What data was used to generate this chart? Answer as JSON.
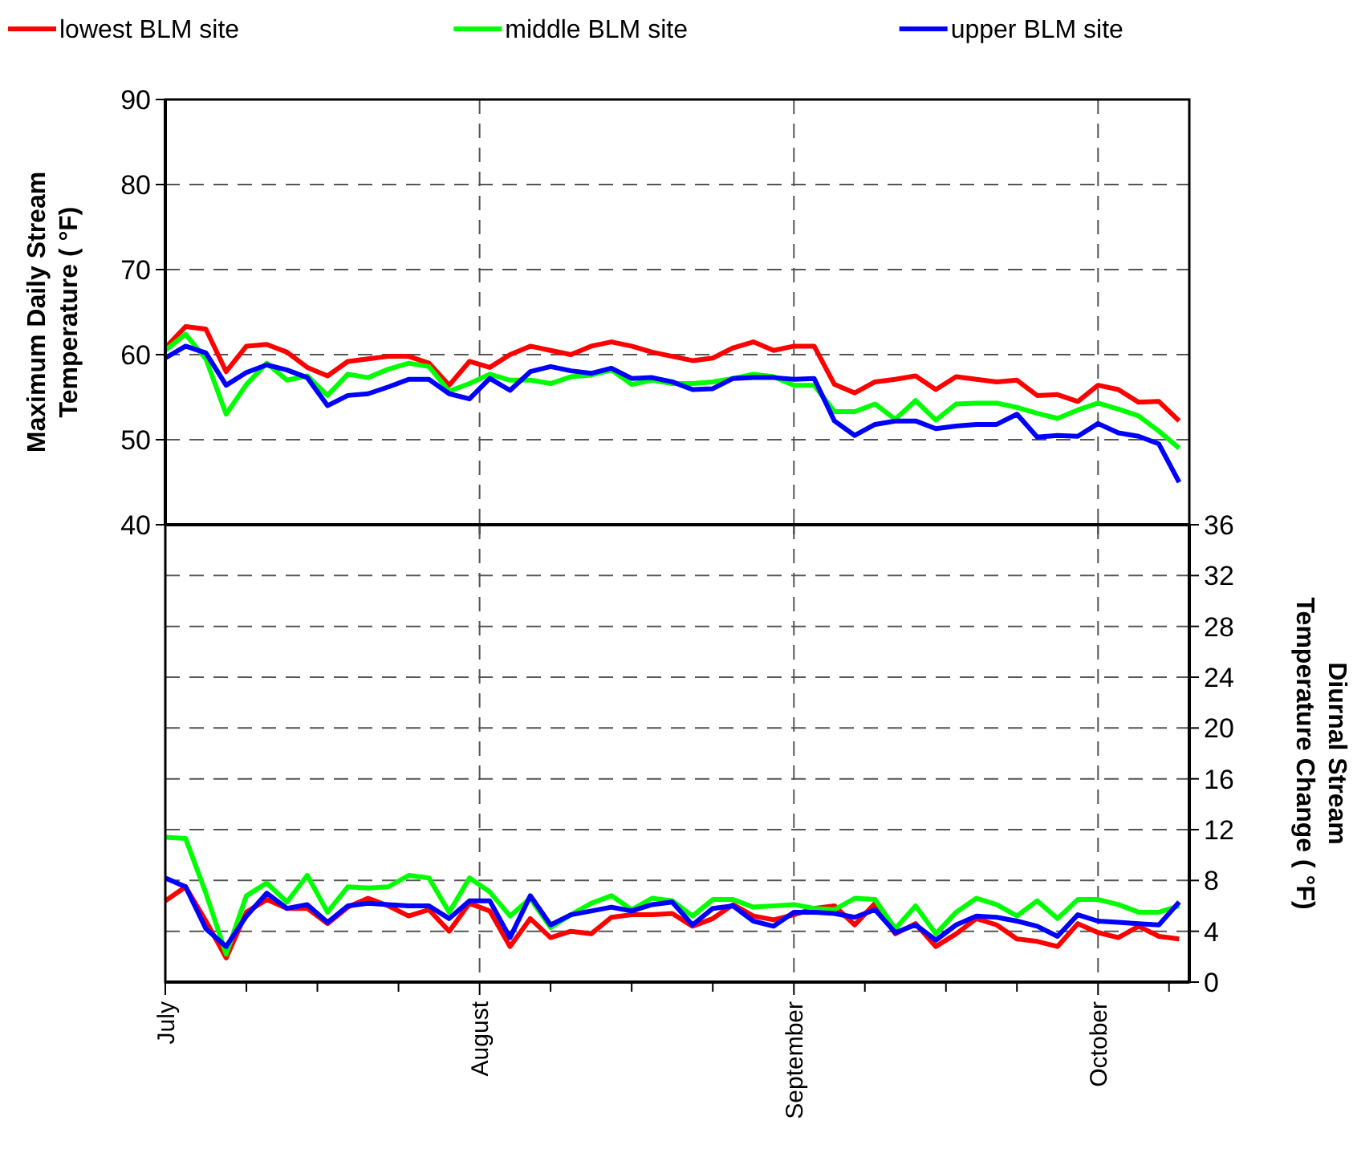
{
  "chart_data": [
    {
      "type": "line",
      "ylabel": "Maximum Daily Stream Temperature ( °F)",
      "legend": "top",
      "grid": true,
      "tick_labels": "y",
      "line_style": "solid",
      "marker": "none",
      "x": [
        "--07-01",
        "--07-03",
        "--07-05",
        "--07-07",
        "--07-09",
        "--07-11",
        "--07-13",
        "--07-15",
        "--07-17",
        "--07-19",
        "--07-21",
        "--07-23",
        "--07-25",
        "--07-27",
        "--07-29",
        "--07-31",
        "--08-02",
        "--08-04",
        "--08-06",
        "--08-08",
        "--08-10",
        "--08-12",
        "--08-14",
        "--08-16",
        "--08-18",
        "--08-20",
        "--08-22",
        "--08-24",
        "--08-26",
        "--08-28",
        "--08-30",
        "--09-01",
        "--09-03",
        "--09-05",
        "--09-07",
        "--09-09",
        "--09-11",
        "--09-13",
        "--09-15",
        "--09-17",
        "--09-19",
        "--09-21",
        "--09-23",
        "--09-25",
        "--09-27",
        "--09-29",
        "--10-01",
        "--10-03",
        "--10-05",
        "--10-07",
        "--10-09"
      ],
      "xlim": [
        "--07-01",
        "--10-10"
      ],
      "xticks": [
        {
          "value": "--07-01",
          "label": null
        },
        {
          "value": "--08-01",
          "label": null
        },
        {
          "value": "--09-01",
          "label": null
        },
        {
          "value": "--10-01",
          "label": null
        }
      ],
      "ylim": [
        40,
        90
      ],
      "yticks": [
        40,
        50,
        60,
        70,
        80,
        90
      ],
      "series": [
        {
          "name": "lowest BLM site",
          "color": "#ff0000",
          "values": [
            60.8,
            63.3,
            63,
            58,
            61,
            61.2,
            60.3,
            58.5,
            57.5,
            59.2,
            59.5,
            59.8,
            59.8,
            59,
            56.4,
            59.2,
            58.5,
            60,
            61,
            60.5,
            60,
            61,
            61.5,
            61,
            60.3,
            59.8,
            59.3,
            59.6,
            60.8,
            61.5,
            60.5,
            61,
            61,
            56.5,
            55.5,
            56.8,
            57.1,
            57.5,
            55.9,
            57.4,
            57.1,
            56.8,
            57,
            55.2,
            55.3,
            54.5,
            56.4,
            55.9,
            54.4,
            54.5,
            52.2
          ]
        },
        {
          "name": "middle BLM site",
          "color": "#00ff00",
          "values": [
            60.5,
            62.4,
            59.5,
            53,
            56.5,
            59,
            57,
            57.5,
            55.2,
            57.7,
            57.3,
            58.3,
            59,
            58.6,
            55.7,
            56.6,
            57.7,
            57,
            57,
            56.6,
            57.4,
            57.6,
            58.2,
            56.5,
            57,
            56.6,
            56.6,
            56.8,
            57.2,
            57.7,
            57.4,
            56.4,
            56.4,
            53.3,
            53.3,
            54.2,
            52.4,
            54.6,
            52.3,
            54.2,
            54.3,
            54.3,
            53.8,
            53.1,
            52.5,
            53.5,
            54.3,
            53.6,
            52.8,
            51,
            49
          ]
        },
        {
          "name": "upper BLM site",
          "color": "#0000ff",
          "values": [
            59.6,
            61,
            60.2,
            56.4,
            57.9,
            58.8,
            58.2,
            57.3,
            54,
            55.2,
            55.4,
            56.2,
            57.1,
            57.1,
            55.4,
            54.8,
            57.2,
            55.8,
            58,
            58.6,
            58.1,
            57.8,
            58.4,
            57.2,
            57.3,
            56.8,
            55.9,
            56,
            57.2,
            57.3,
            57.3,
            57.1,
            57.2,
            52.2,
            50.5,
            51.8,
            52.2,
            52.2,
            51.3,
            51.6,
            51.8,
            51.8,
            53,
            50.3,
            50.5,
            50.4,
            51.9,
            50.8,
            50.4,
            49.5,
            45
          ]
        }
      ]
    },
    {
      "type": "line",
      "y2label": "Diurnal Stream Temperature Change ( °F)",
      "grid": true,
      "line_style": "solid",
      "marker": "none",
      "x": [
        "--07-01",
        "--07-03",
        "--07-05",
        "--07-07",
        "--07-09",
        "--07-11",
        "--07-13",
        "--07-15",
        "--07-17",
        "--07-19",
        "--07-21",
        "--07-23",
        "--07-25",
        "--07-27",
        "--07-29",
        "--07-31",
        "--08-02",
        "--08-04",
        "--08-06",
        "--08-08",
        "--08-10",
        "--08-12",
        "--08-14",
        "--08-16",
        "--08-18",
        "--08-20",
        "--08-22",
        "--08-24",
        "--08-26",
        "--08-28",
        "--08-30",
        "--09-01",
        "--09-03",
        "--09-05",
        "--09-07",
        "--09-09",
        "--09-11",
        "--09-13",
        "--09-15",
        "--09-17",
        "--09-19",
        "--09-21",
        "--09-23",
        "--09-25",
        "--09-27",
        "--09-29",
        "--10-01",
        "--10-03",
        "--10-05",
        "--10-07",
        "--10-09"
      ],
      "xlim": [
        "--07-01",
        "--10-10"
      ],
      "xticks": [
        {
          "value": "--07-01",
          "label": "July"
        },
        {
          "value": "--07-09",
          "label": null
        },
        {
          "value": "--07-16",
          "label": null
        },
        {
          "value": "--07-24",
          "label": null
        },
        {
          "value": "--08-01",
          "label": "August"
        },
        {
          "value": "--08-08",
          "label": null
        },
        {
          "value": "--08-16",
          "label": null
        },
        {
          "value": "--08-24",
          "label": null
        },
        {
          "value": "--09-01",
          "label": "September"
        },
        {
          "value": "--09-08",
          "label": null
        },
        {
          "value": "--09-16",
          "label": null
        },
        {
          "value": "--09-23",
          "label": null
        },
        {
          "value": "--10-01",
          "label": "October"
        },
        {
          "value": "--10-08",
          "label": null
        }
      ],
      "y2lim": [
        0,
        36
      ],
      "y2ticks": [
        0,
        4,
        8,
        12,
        16,
        20,
        24,
        28,
        32,
        36
      ],
      "series": [
        {
          "color": "#ff0000",
          "axis": "y2",
          "values": [
            6.4,
            7.5,
            4.8,
            1.9,
            5.5,
            6.5,
            5.8,
            5.8,
            4.6,
            5.9,
            6.6,
            6,
            5.2,
            5.7,
            4,
            6.2,
            5.6,
            2.8,
            5,
            3.5,
            4,
            3.8,
            5.1,
            5.3,
            5.3,
            5.4,
            4.4,
            5,
            6.1,
            5.2,
            4.9,
            5.3,
            5.8,
            6,
            4.5,
            6.2,
            3.8,
            4.6,
            2.8,
            3.8,
            5,
            4.5,
            3.4,
            3.2,
            2.8,
            4.6,
            3.9,
            3.5,
            4.4,
            3.6,
            3.4
          ]
        },
        {
          "color": "#00ff00",
          "axis": "y2",
          "values": [
            11.4,
            11.3,
            7,
            2.2,
            6.8,
            7.8,
            6.3,
            8.4,
            5.5,
            7.5,
            7.4,
            7.5,
            8.4,
            8.2,
            5.5,
            8.2,
            7.1,
            5.2,
            6.6,
            4.3,
            5.3,
            6.2,
            6.8,
            5.7,
            6.6,
            6.4,
            5.2,
            6.5,
            6.5,
            5.9,
            6,
            6.1,
            5.8,
            5.7,
            6.6,
            6.5,
            4.2,
            6,
            3.8,
            5.5,
            6.6,
            6.1,
            5.2,
            6.4,
            5,
            6.5,
            6.5,
            6.1,
            5.5,
            5.5,
            6
          ]
        },
        {
          "color": "#0000ff",
          "axis": "y2",
          "values": [
            8.2,
            7.5,
            4.2,
            2.8,
            5.2,
            7,
            5.8,
            6.1,
            4.7,
            6,
            6.2,
            6.1,
            6,
            6,
            5,
            6.4,
            6.4,
            3.5,
            6.8,
            4.5,
            5.3,
            5.6,
            5.9,
            5.6,
            6.1,
            6.3,
            4.5,
            5.8,
            6,
            4.8,
            4.4,
            5.5,
            5.5,
            5.4,
            5.1,
            5.7,
            3.9,
            4.5,
            3.3,
            4.5,
            5.2,
            5.1,
            4.8,
            4.4,
            3.6,
            5.3,
            4.8,
            4.7,
            4.6,
            4.5,
            6.3
          ]
        }
      ]
    }
  ]
}
